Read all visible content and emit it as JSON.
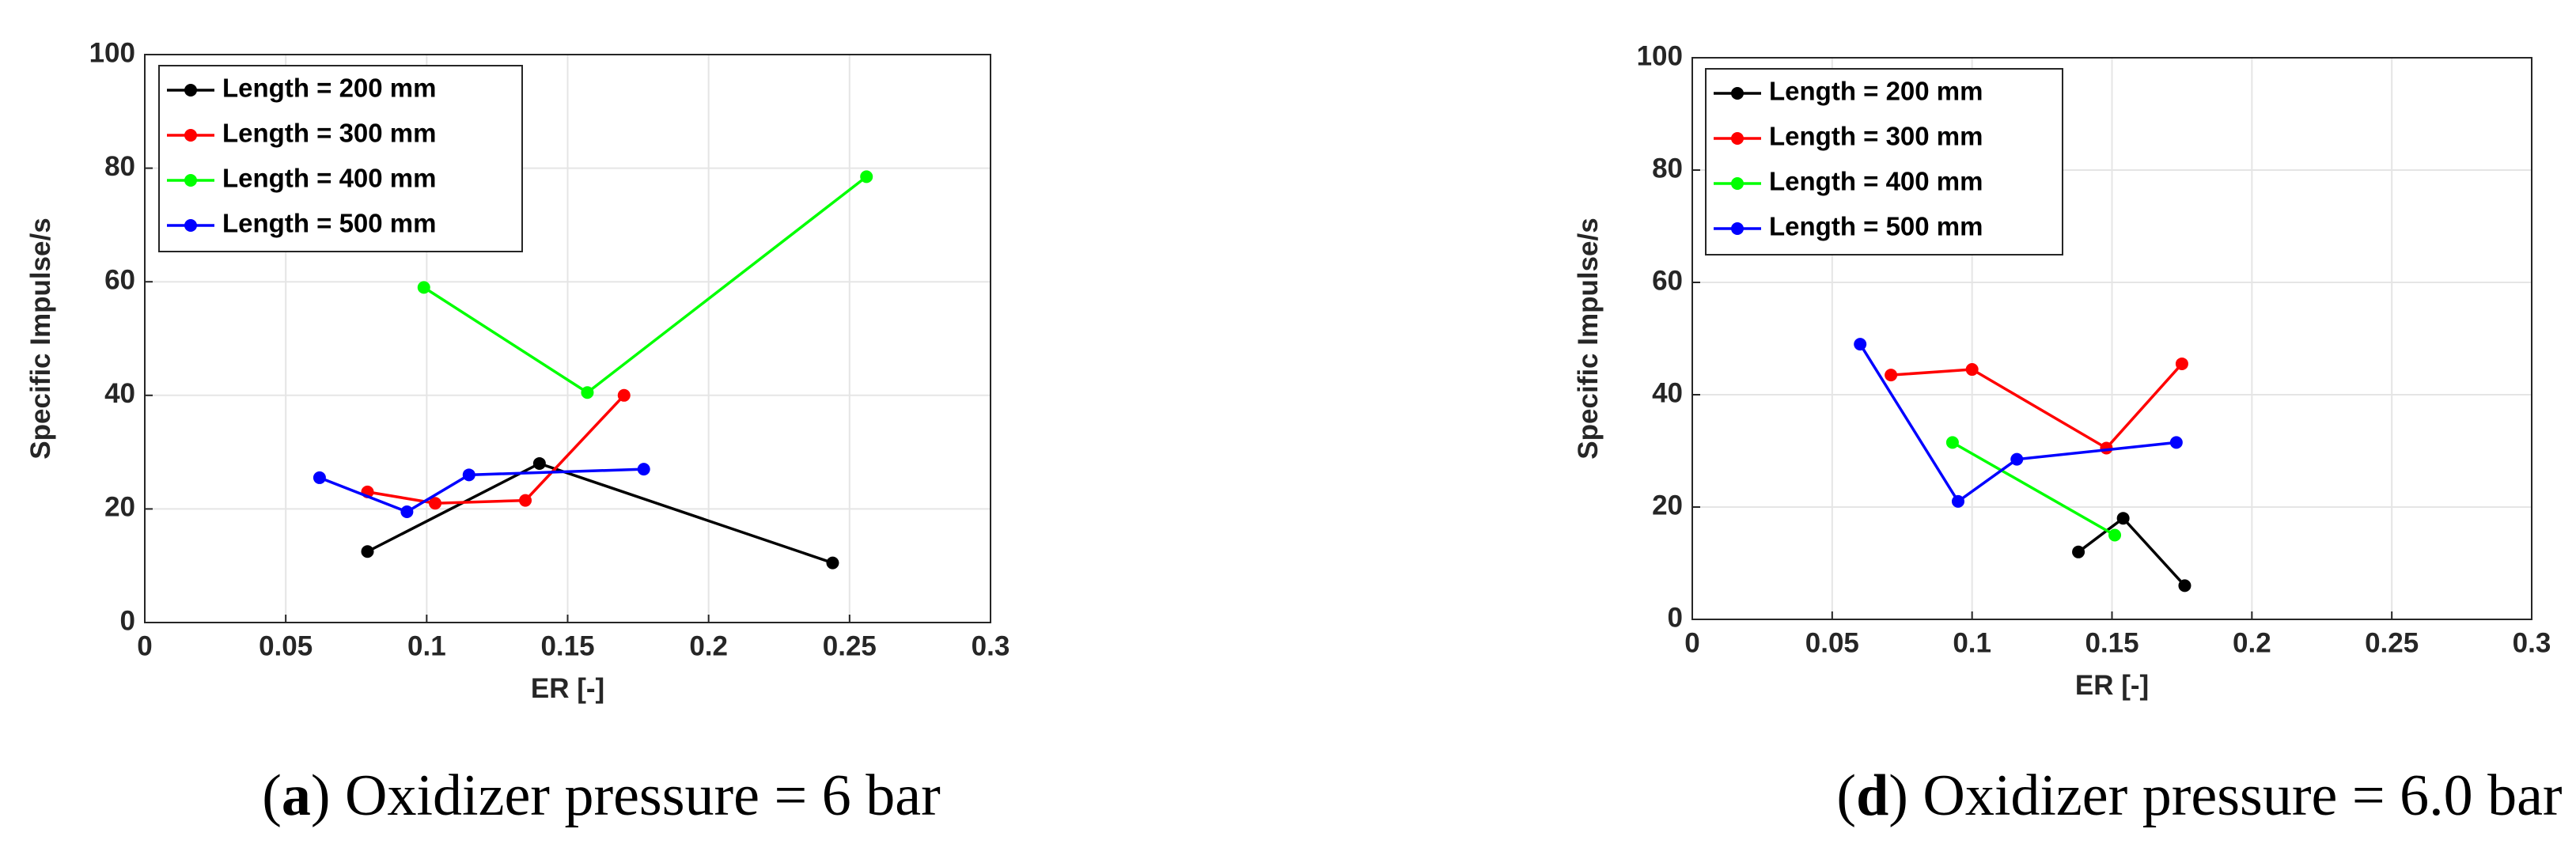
{
  "chart_data": [
    {
      "type": "line",
      "xlabel": "ER [-]",
      "ylabel": "Specific Impulse/s",
      "xlim": [
        0,
        0.3
      ],
      "xticks": [
        0,
        0.05,
        0.1,
        0.15,
        0.2,
        0.25,
        0.3
      ],
      "ylim": [
        0,
        100
      ],
      "yticks": [
        0,
        20,
        40,
        60,
        80,
        100
      ],
      "grid": true,
      "legend": "upper left",
      "series": [
        {
          "name": "Length = 200 mm",
          "color": "#000000",
          "x": [
            0.079,
            0.14,
            0.244
          ],
          "values": [
            12.5,
            28,
            10.5
          ]
        },
        {
          "name": "Length = 300 mm",
          "color": "#ff0000",
          "x": [
            0.079,
            0.103,
            0.135,
            0.17
          ],
          "values": [
            23,
            21,
            21.5,
            40
          ]
        },
        {
          "name": "Length = 400 mm",
          "color": "#00ff00",
          "x": [
            0.099,
            0.157,
            0.256
          ],
          "values": [
            59,
            40.5,
            78.5
          ]
        },
        {
          "name": "Length = 500 mm",
          "color": "#0000ff",
          "x": [
            0.062,
            0.093,
            0.115,
            0.177
          ],
          "values": [
            25.5,
            19.5,
            26,
            27
          ]
        }
      ],
      "caption": [
        "(",
        "a",
        ") Oxidizer pressure = 6 bar"
      ]
    },
    {
      "type": "line",
      "xlabel": "ER [-]",
      "ylabel": "Specific Impulse/s",
      "xlim": [
        0,
        0.3
      ],
      "xticks": [
        0,
        0.05,
        0.1,
        0.15,
        0.2,
        0.25,
        0.3
      ],
      "ylim": [
        0,
        100
      ],
      "yticks": [
        0,
        20,
        40,
        60,
        80,
        100
      ],
      "grid": true,
      "legend": "upper left",
      "series": [
        {
          "name": "Length = 200 mm",
          "color": "#000000",
          "x": [
            0.138,
            0.154,
            0.176
          ],
          "values": [
            12,
            18,
            6
          ]
        },
        {
          "name": "Length = 300 mm",
          "color": "#ff0000",
          "x": [
            0.071,
            0.1,
            0.148,
            0.175
          ],
          "values": [
            43.5,
            44.5,
            30.5,
            45.5
          ]
        },
        {
          "name": "Length = 400 mm",
          "color": "#00ff00",
          "x": [
            0.093,
            0.151
          ],
          "values": [
            31.5,
            15
          ]
        },
        {
          "name": "Length = 500 mm",
          "color": "#0000ff",
          "x": [
            0.06,
            0.095,
            0.116,
            0.173
          ],
          "values": [
            49,
            21,
            28.5,
            31.5
          ]
        }
      ],
      "caption": [
        "(",
        "d",
        ") Oxidizer pressure = 6.0 bar"
      ]
    }
  ]
}
